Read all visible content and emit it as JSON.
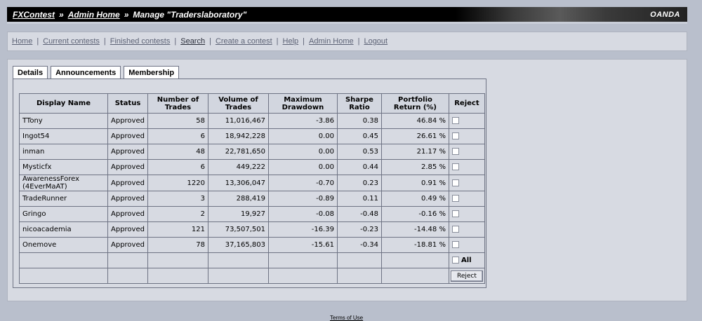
{
  "header": {
    "crumbs": [
      "FXContest",
      "Admin Home"
    ],
    "sep": "»",
    "page_title": "Manage \"Traderslaboratory\"",
    "brand": "OANDA"
  },
  "nav": {
    "items": [
      "Home",
      "Current contests",
      "Finished contests",
      "Search",
      "Create a contest",
      "Help",
      "Admin Home",
      "Logout"
    ],
    "pipe": "|"
  },
  "tabs": [
    "Details",
    "Announcements",
    "Membership"
  ],
  "active_tab": "Membership",
  "table": {
    "headers": [
      "Display Name",
      "Status",
      "Number of Trades",
      "Volume of Trades",
      "Maximum Drawdown",
      "Sharpe Ratio",
      "Portfolio Return (%)",
      "Reject"
    ],
    "rows": [
      [
        "TTony",
        "Approved",
        "58",
        "11,016,467",
        "-3.86",
        "0.38",
        "46.84 %"
      ],
      [
        "Ingot54",
        "Approved",
        "6",
        "18,942,228",
        "0.00",
        "0.45",
        "26.61 %"
      ],
      [
        "inman",
        "Approved",
        "48",
        "22,781,650",
        "0.00",
        "0.53",
        "21.17 %"
      ],
      [
        "Mysticfx",
        "Approved",
        "6",
        "449,222",
        "0.00",
        "0.44",
        "2.85 %"
      ],
      [
        "AwarenessForex (4EverMaAT)",
        "Approved",
        "1220",
        "13,306,047",
        "-0.70",
        "0.23",
        "0.91 %"
      ],
      [
        "TradeRunner",
        "Approved",
        "3",
        "288,419",
        "-0.89",
        "0.11",
        "0.49 %"
      ],
      [
        "Gringo",
        "Approved",
        "2",
        "19,927",
        "-0.08",
        "-0.48",
        "-0.16 %"
      ],
      [
        "nicoacademia",
        "Approved",
        "121",
        "73,507,501",
        "-16.39",
        "-0.23",
        "-14.48 %"
      ],
      [
        "Onemove",
        "Approved",
        "78",
        "37,165,803",
        "-15.61",
        "-0.34",
        "-18.81 %"
      ]
    ],
    "all_label": "All",
    "reject_button": "Reject"
  },
  "footer": {
    "terms": "Terms of Use"
  }
}
